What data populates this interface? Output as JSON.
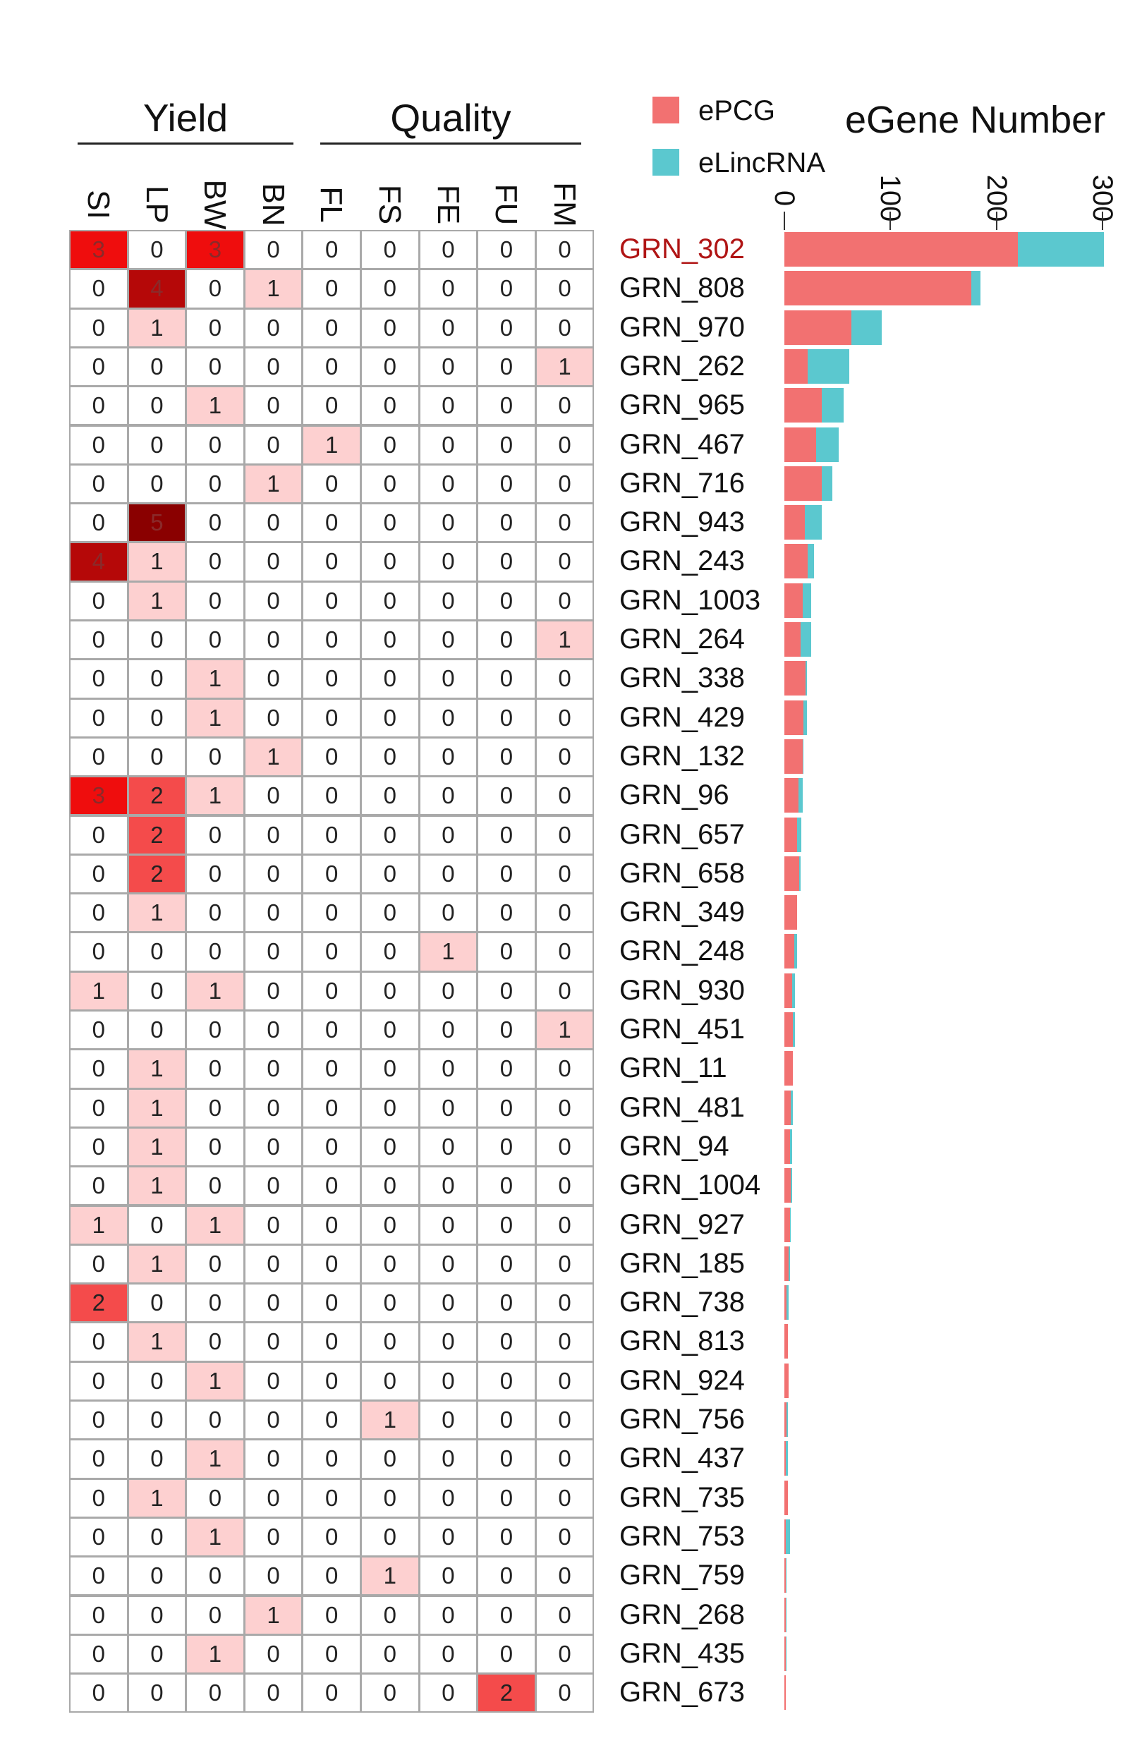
{
  "chart_data": [
    {
      "type": "heatmap",
      "column_groups": [
        {
          "name": "Yield",
          "columns": [
            "SI",
            "LP",
            "BW",
            "BN"
          ]
        },
        {
          "name": "Quality",
          "columns": [
            "FL",
            "FS",
            "FE",
            "FU",
            "FM"
          ]
        }
      ],
      "columns": [
        "SI",
        "LP",
        "BW",
        "BN",
        "FL",
        "FS",
        "FE",
        "FU",
        "FM"
      ],
      "rows": [
        "GRN_302",
        "GRN_808",
        "GRN_970",
        "GRN_262",
        "GRN_965",
        "GRN_467",
        "GRN_716",
        "GRN_943",
        "GRN_243",
        "GRN_1003",
        "GRN_264",
        "GRN_338",
        "GRN_429",
        "GRN_132",
        "GRN_96",
        "GRN_657",
        "GRN_658",
        "GRN_349",
        "GRN_248",
        "GRN_930",
        "GRN_451",
        "GRN_11",
        "GRN_481",
        "GRN_94",
        "GRN_1004",
        "GRN_927",
        "GRN_185",
        "GRN_738",
        "GRN_813",
        "GRN_924",
        "GRN_756",
        "GRN_437",
        "GRN_735",
        "GRN_753",
        "GRN_759",
        "GRN_268",
        "GRN_435",
        "GRN_673"
      ],
      "highlighted_row": "GRN_302",
      "values": [
        [
          3,
          0,
          3,
          0,
          0,
          0,
          0,
          0,
          0
        ],
        [
          0,
          4,
          0,
          1,
          0,
          0,
          0,
          0,
          0
        ],
        [
          0,
          1,
          0,
          0,
          0,
          0,
          0,
          0,
          0
        ],
        [
          0,
          0,
          0,
          0,
          0,
          0,
          0,
          0,
          1
        ],
        [
          0,
          0,
          1,
          0,
          0,
          0,
          0,
          0,
          0
        ],
        [
          0,
          0,
          0,
          0,
          1,
          0,
          0,
          0,
          0
        ],
        [
          0,
          0,
          0,
          1,
          0,
          0,
          0,
          0,
          0
        ],
        [
          0,
          5,
          0,
          0,
          0,
          0,
          0,
          0,
          0
        ],
        [
          4,
          1,
          0,
          0,
          0,
          0,
          0,
          0,
          0
        ],
        [
          0,
          1,
          0,
          0,
          0,
          0,
          0,
          0,
          0
        ],
        [
          0,
          0,
          0,
          0,
          0,
          0,
          0,
          0,
          1
        ],
        [
          0,
          0,
          1,
          0,
          0,
          0,
          0,
          0,
          0
        ],
        [
          0,
          0,
          1,
          0,
          0,
          0,
          0,
          0,
          0
        ],
        [
          0,
          0,
          0,
          1,
          0,
          0,
          0,
          0,
          0
        ],
        [
          3,
          2,
          1,
          0,
          0,
          0,
          0,
          0,
          0
        ],
        [
          0,
          2,
          0,
          0,
          0,
          0,
          0,
          0,
          0
        ],
        [
          0,
          2,
          0,
          0,
          0,
          0,
          0,
          0,
          0
        ],
        [
          0,
          1,
          0,
          0,
          0,
          0,
          0,
          0,
          0
        ],
        [
          0,
          0,
          0,
          0,
          0,
          0,
          1,
          0,
          0
        ],
        [
          1,
          0,
          1,
          0,
          0,
          0,
          0,
          0,
          0
        ],
        [
          0,
          0,
          0,
          0,
          0,
          0,
          0,
          0,
          1
        ],
        [
          0,
          1,
          0,
          0,
          0,
          0,
          0,
          0,
          0
        ],
        [
          0,
          1,
          0,
          0,
          0,
          0,
          0,
          0,
          0
        ],
        [
          0,
          1,
          0,
          0,
          0,
          0,
          0,
          0,
          0
        ],
        [
          0,
          1,
          0,
          0,
          0,
          0,
          0,
          0,
          0
        ],
        [
          1,
          0,
          1,
          0,
          0,
          0,
          0,
          0,
          0
        ],
        [
          0,
          1,
          0,
          0,
          0,
          0,
          0,
          0,
          0
        ],
        [
          2,
          0,
          0,
          0,
          0,
          0,
          0,
          0,
          0
        ],
        [
          0,
          1,
          0,
          0,
          0,
          0,
          0,
          0,
          0
        ],
        [
          0,
          0,
          1,
          0,
          0,
          0,
          0,
          0,
          0
        ],
        [
          0,
          0,
          0,
          0,
          0,
          1,
          0,
          0,
          0
        ],
        [
          0,
          0,
          1,
          0,
          0,
          0,
          0,
          0,
          0
        ],
        [
          0,
          1,
          0,
          0,
          0,
          0,
          0,
          0,
          0
        ],
        [
          0,
          0,
          1,
          0,
          0,
          0,
          0,
          0,
          0
        ],
        [
          0,
          0,
          0,
          0,
          0,
          1,
          0,
          0,
          0
        ],
        [
          0,
          0,
          0,
          1,
          0,
          0,
          0,
          0,
          0
        ],
        [
          0,
          0,
          1,
          0,
          0,
          0,
          0,
          0,
          0
        ],
        [
          0,
          0,
          0,
          0,
          0,
          0,
          0,
          2,
          0
        ]
      ],
      "color_scale": {
        "0": "#ffffff",
        "1": "#fdd0d0",
        "2": "#f44b4b",
        "3": "#ef0d0d",
        "4": "#b50808",
        "5": "#8a0000"
      }
    },
    {
      "type": "bar",
      "orientation": "horizontal",
      "stacked": true,
      "title": "eGene Number",
      "categories": [
        "GRN_302",
        "GRN_808",
        "GRN_970",
        "GRN_262",
        "GRN_965",
        "GRN_467",
        "GRN_716",
        "GRN_943",
        "GRN_243",
        "GRN_1003",
        "GRN_264",
        "GRN_338",
        "GRN_429",
        "GRN_132",
        "GRN_96",
        "GRN_657",
        "GRN_658",
        "GRN_349",
        "GRN_248",
        "GRN_930",
        "GRN_451",
        "GRN_11",
        "GRN_481",
        "GRN_94",
        "GRN_1004",
        "GRN_927",
        "GRN_185",
        "GRN_738",
        "GRN_813",
        "GRN_924",
        "GRN_756",
        "GRN_437",
        "GRN_735",
        "GRN_753",
        "GRN_759",
        "GRN_268",
        "GRN_435",
        "GRN_673"
      ],
      "series": [
        {
          "name": "ePCG",
          "color": "#f27171",
          "values": [
            220,
            176,
            63,
            22,
            35,
            30,
            35,
            19,
            22,
            17,
            15,
            20,
            18,
            17,
            13,
            12,
            14,
            12,
            9,
            7,
            8,
            8,
            6,
            5,
            6,
            5,
            4,
            2,
            3,
            4,
            2,
            1,
            3,
            1,
            1,
            1,
            1,
            1
          ]
        },
        {
          "name": "eLincRNA",
          "color": "#5bc8cf",
          "values": [
            81,
            9,
            29,
            39,
            21,
            21,
            10,
            16,
            6,
            8,
            10,
            1,
            3,
            1,
            4,
            4,
            1,
            0,
            3,
            3,
            2,
            0,
            2,
            2,
            1,
            1,
            1,
            2,
            0,
            0,
            1,
            2,
            0,
            4,
            1,
            1,
            1,
            0
          ]
        }
      ],
      "xlim": [
        0,
        300
      ],
      "ticks": [
        "0",
        "100",
        "200",
        "300"
      ]
    }
  ],
  "legend": [
    {
      "label": "ePCG",
      "color": "#f27171"
    },
    {
      "label": "eLincRNA",
      "color": "#5bc8cf"
    }
  ]
}
